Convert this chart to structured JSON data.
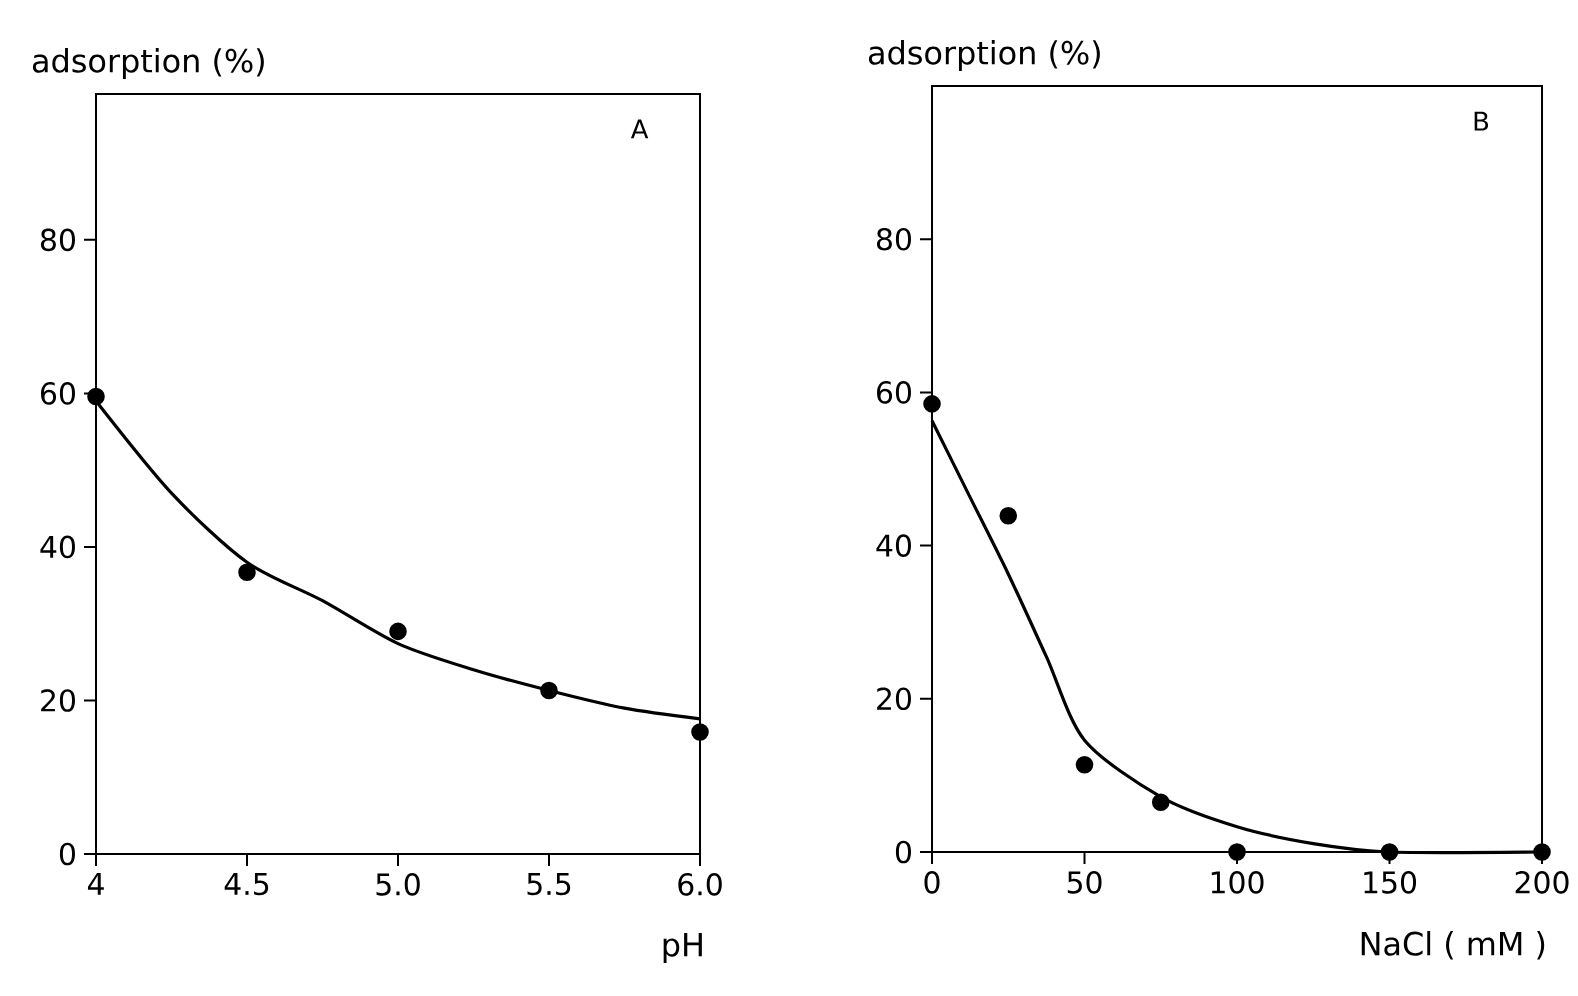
{
  "chart_data": [
    {
      "type": "scatter",
      "title": "A",
      "xlabel": "pH",
      "ylabel": "adsorption (%)",
      "xlim": [
        4,
        6
      ],
      "ylim": [
        0,
        99
      ],
      "marker": "circle",
      "xticks": [
        4,
        4.5,
        {
          "value": 5,
          "label": "5.0"
        },
        5.5,
        {
          "value": 6,
          "label": "6.0"
        }
      ],
      "yticks": [
        0,
        20,
        40,
        60,
        80
      ],
      "series": [
        {
          "color": "#000000",
          "x": [
            4,
            4.5,
            5,
            5.5,
            6
          ],
          "values": [
            59.6,
            36.7,
            29.0,
            21.3,
            15.9
          ]
        },
        {
          "type": "line",
          "marker": "none",
          "color": "#000000",
          "x": [
            4,
            4.25,
            4.5,
            4.75,
            5,
            5.25,
            5.5,
            5.75,
            6
          ],
          "values": [
            59,
            47,
            38,
            33,
            27.4,
            24,
            21.3,
            19,
            17.6
          ]
        }
      ]
    },
    {
      "type": "scatter",
      "title": "B",
      "xlabel": "NaCl ( mM )",
      "ylabel": "adsorption (%)",
      "xlim": [
        0,
        200
      ],
      "ylim": [
        0,
        100
      ],
      "marker": "circle",
      "xticks": [
        0,
        50,
        100,
        150,
        200
      ],
      "yticks": [
        0,
        20,
        40,
        60,
        80
      ],
      "series": [
        {
          "color": "#000000",
          "x": [
            0,
            25,
            50,
            75,
            100,
            150,
            200
          ],
          "values": [
            58.5,
            43.9,
            11.4,
            6.5,
            0,
            0,
            0
          ]
        },
        {
          "type": "line",
          "marker": "none",
          "color": "#000000",
          "x": [
            0,
            12.5,
            25,
            37.5,
            50,
            75,
            100,
            125,
            150,
            200
          ],
          "values": [
            56.3,
            46.3,
            36.3,
            25.5,
            14.6,
            7.2,
            3.3,
            1.1,
            0,
            0
          ]
        }
      ]
    }
  ]
}
